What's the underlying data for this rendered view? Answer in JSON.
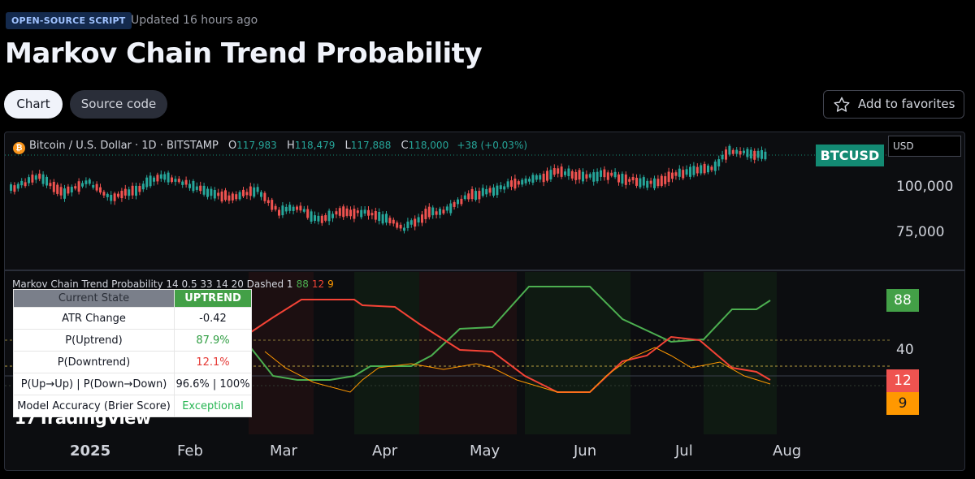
{
  "header": {
    "badge": "OPEN-SOURCE SCRIPT",
    "updated": "Updated 16 hours ago",
    "title": "Markov Chain Trend Probability"
  },
  "tabs": [
    {
      "label": "Chart"
    },
    {
      "label": "Source code"
    }
  ],
  "favorites": {
    "label": "Add to favorites",
    "icon": "star-icon"
  },
  "symbol": {
    "name": "Bitcoin / U.S. Dollar · 1D · BITSTAMP",
    "o_key": "O",
    "o": "117,983",
    "h_key": "H",
    "h": "118,479",
    "l_key": "L",
    "l": "117,888",
    "c_key": "C",
    "c": "118,000",
    "change": "+38 (+0.03%)",
    "tag": "BTCUSD",
    "currency": "USD"
  },
  "price_axis": {
    "labels": [
      "100,000",
      "75,000"
    ]
  },
  "indicator": {
    "title": "Markov Chain Trend Probability 14 0.5 33 14 20 Dashed 1",
    "v_up": "88",
    "v_down": "12",
    "v_other": "9",
    "axis_40": "40",
    "colors": {
      "up": "#4caf50",
      "down": "#f44336",
      "other": "#ff9800"
    }
  },
  "state_table": {
    "header_label": "Current State",
    "header_value": "UPTREND",
    "rows": [
      {
        "label": "ATR Change",
        "value": "-0.42"
      },
      {
        "label": "P(Uptrend)",
        "value": "87.9%"
      },
      {
        "label": "P(Downtrend)",
        "value": "12.1%"
      },
      {
        "label": "P(Up→Up) | P(Down→Down)",
        "value": "96.6% | 100%"
      },
      {
        "label": "Model Accuracy (Brier Score)",
        "value": "Exceptional"
      }
    ]
  },
  "watermark": "TradingView",
  "time_axis": [
    "2025",
    "Feb",
    "Mar",
    "Apr",
    "May",
    "Jun",
    "Jul",
    "Aug"
  ]
}
